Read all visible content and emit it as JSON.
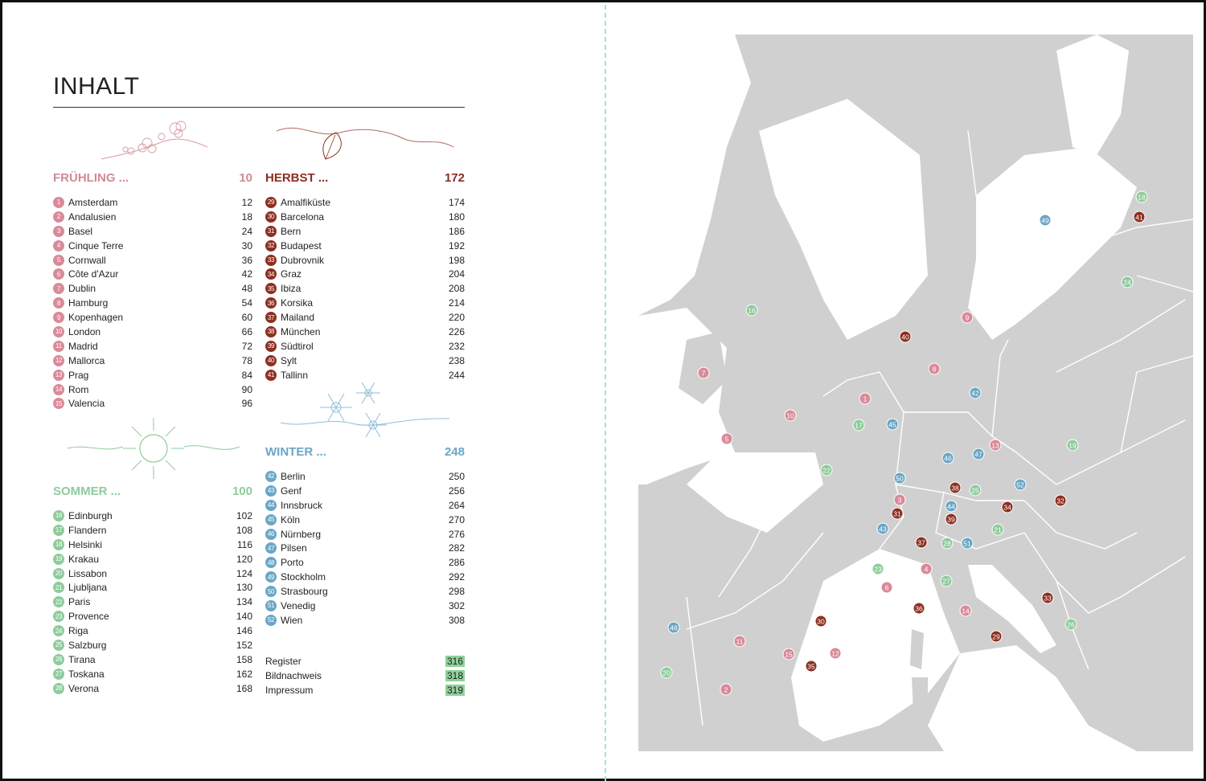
{
  "title": "INHALT",
  "sections": {
    "spring": {
      "label": "FRÜHLING ...",
      "page": "10",
      "items": [
        {
          "n": "1",
          "name": "Amsterdam",
          "page": "12"
        },
        {
          "n": "2",
          "name": "Andalusien",
          "page": "18"
        },
        {
          "n": "3",
          "name": "Basel",
          "page": "24"
        },
        {
          "n": "4",
          "name": "Cinque Terre",
          "page": "30"
        },
        {
          "n": "5",
          "name": "Cornwall",
          "page": "36"
        },
        {
          "n": "6",
          "name": "Côte d'Azur",
          "page": "42"
        },
        {
          "n": "7",
          "name": "Dublin",
          "page": "48"
        },
        {
          "n": "8",
          "name": "Hamburg",
          "page": "54"
        },
        {
          "n": "9",
          "name": "Kopenhagen",
          "page": "60"
        },
        {
          "n": "10",
          "name": "London",
          "page": "66"
        },
        {
          "n": "11",
          "name": "Madrid",
          "page": "72"
        },
        {
          "n": "12",
          "name": "Mallorca",
          "page": "78"
        },
        {
          "n": "13",
          "name": "Prag",
          "page": "84"
        },
        {
          "n": "14",
          "name": "Rom",
          "page": "90"
        },
        {
          "n": "15",
          "name": "Valencia",
          "page": "96"
        }
      ]
    },
    "summer": {
      "label": "SOMMER ...",
      "page": "100",
      "items": [
        {
          "n": "16",
          "name": "Edinburgh",
          "page": "102"
        },
        {
          "n": "17",
          "name": "Flandern",
          "page": "108"
        },
        {
          "n": "18",
          "name": "Helsinki",
          "page": "116"
        },
        {
          "n": "19",
          "name": "Krakau",
          "page": "120"
        },
        {
          "n": "20",
          "name": "Lissabon",
          "page": "124"
        },
        {
          "n": "21",
          "name": "Ljubljana",
          "page": "130"
        },
        {
          "n": "22",
          "name": "Paris",
          "page": "134"
        },
        {
          "n": "23",
          "name": "Provence",
          "page": "140"
        },
        {
          "n": "24",
          "name": "Riga",
          "page": "146"
        },
        {
          "n": "25",
          "name": "Salzburg",
          "page": "152"
        },
        {
          "n": "26",
          "name": "Tirana",
          "page": "158"
        },
        {
          "n": "27",
          "name": "Toskana",
          "page": "162"
        },
        {
          "n": "28",
          "name": "Verona",
          "page": "168"
        }
      ]
    },
    "autumn": {
      "label": "HERBST ...",
      "page": "172",
      "items": [
        {
          "n": "29",
          "name": "Amalfiküste",
          "page": "174"
        },
        {
          "n": "30",
          "name": "Barcelona",
          "page": "180"
        },
        {
          "n": "31",
          "name": "Bern",
          "page": "186"
        },
        {
          "n": "32",
          "name": "Budapest",
          "page": "192"
        },
        {
          "n": "33",
          "name": "Dubrovnik",
          "page": "198"
        },
        {
          "n": "34",
          "name": "Graz",
          "page": "204"
        },
        {
          "n": "35",
          "name": "Ibiza",
          "page": "208"
        },
        {
          "n": "36",
          "name": "Korsika",
          "page": "214"
        },
        {
          "n": "37",
          "name": "Mailand",
          "page": "220"
        },
        {
          "n": "38",
          "name": "München",
          "page": "226"
        },
        {
          "n": "39",
          "name": "Südtirol",
          "page": "232"
        },
        {
          "n": "40",
          "name": "Sylt",
          "page": "238"
        },
        {
          "n": "41",
          "name": "Tallinn",
          "page": "244"
        }
      ]
    },
    "winter": {
      "label": "WINTER ...",
      "page": "248",
      "items": [
        {
          "n": "42",
          "name": "Berlin",
          "page": "250"
        },
        {
          "n": "43",
          "name": "Genf",
          "page": "256"
        },
        {
          "n": "44",
          "name": "Innsbruck",
          "page": "264"
        },
        {
          "n": "45",
          "name": "Köln",
          "page": "270"
        },
        {
          "n": "46",
          "name": "Nürnberg",
          "page": "276"
        },
        {
          "n": "47",
          "name": "Pilsen",
          "page": "282"
        },
        {
          "n": "48",
          "name": "Porto",
          "page": "286"
        },
        {
          "n": "49",
          "name": "Stockholm",
          "page": "292"
        },
        {
          "n": "50",
          "name": "Strasbourg",
          "page": "298"
        },
        {
          "n": "51",
          "name": "Venedig",
          "page": "302"
        },
        {
          "n": "52",
          "name": "Wien",
          "page": "308"
        }
      ]
    }
  },
  "extras": [
    {
      "name": "Register",
      "page": "316"
    },
    {
      "name": "Bildnachweis",
      "page": "318"
    },
    {
      "name": "Impressum",
      "page": "319"
    }
  ],
  "colors": {
    "spring": "#d98a99",
    "summer": "#8fcb9c",
    "autumn": "#8e2f20",
    "winter": "#6aa6c6"
  },
  "map": {
    "pins": [
      {
        "n": "1",
        "season": "spring"
      },
      {
        "n": "2",
        "season": "spring"
      },
      {
        "n": "3",
        "season": "spring"
      },
      {
        "n": "4",
        "season": "spring"
      },
      {
        "n": "5",
        "season": "spring"
      },
      {
        "n": "6",
        "season": "spring"
      },
      {
        "n": "7",
        "season": "spring"
      },
      {
        "n": "8",
        "season": "spring"
      },
      {
        "n": "9",
        "season": "spring"
      },
      {
        "n": "10",
        "season": "spring"
      },
      {
        "n": "11",
        "season": "spring"
      },
      {
        "n": "12",
        "season": "spring"
      },
      {
        "n": "13",
        "season": "spring"
      },
      {
        "n": "14",
        "season": "spring"
      },
      {
        "n": "15",
        "season": "spring"
      },
      {
        "n": "16",
        "season": "summer"
      },
      {
        "n": "17",
        "season": "summer"
      },
      {
        "n": "18",
        "season": "summer"
      },
      {
        "n": "19",
        "season": "summer"
      },
      {
        "n": "20",
        "season": "summer"
      },
      {
        "n": "21",
        "season": "summer"
      },
      {
        "n": "22",
        "season": "summer"
      },
      {
        "n": "23",
        "season": "summer"
      },
      {
        "n": "24",
        "season": "summer"
      },
      {
        "n": "25",
        "season": "summer"
      },
      {
        "n": "26",
        "season": "summer"
      },
      {
        "n": "27",
        "season": "summer"
      },
      {
        "n": "28",
        "season": "summer"
      },
      {
        "n": "29",
        "season": "autumn"
      },
      {
        "n": "30",
        "season": "autumn"
      },
      {
        "n": "31",
        "season": "autumn"
      },
      {
        "n": "32",
        "season": "autumn"
      },
      {
        "n": "33",
        "season": "autumn"
      },
      {
        "n": "34",
        "season": "autumn"
      },
      {
        "n": "35",
        "season": "autumn"
      },
      {
        "n": "36",
        "season": "autumn"
      },
      {
        "n": "37",
        "season": "autumn"
      },
      {
        "n": "38",
        "season": "autumn"
      },
      {
        "n": "39",
        "season": "autumn"
      },
      {
        "n": "40",
        "season": "autumn"
      },
      {
        "n": "41",
        "season": "autumn"
      },
      {
        "n": "42",
        "season": "winter"
      },
      {
        "n": "43",
        "season": "winter"
      },
      {
        "n": "44",
        "season": "winter"
      },
      {
        "n": "45",
        "season": "winter"
      },
      {
        "n": "46",
        "season": "winter"
      },
      {
        "n": "47",
        "season": "winter"
      },
      {
        "n": "48",
        "season": "winter"
      },
      {
        "n": "49",
        "season": "winter"
      },
      {
        "n": "50",
        "season": "winter"
      },
      {
        "n": "51",
        "season": "winter"
      },
      {
        "n": "52",
        "season": "winter"
      }
    ]
  }
}
